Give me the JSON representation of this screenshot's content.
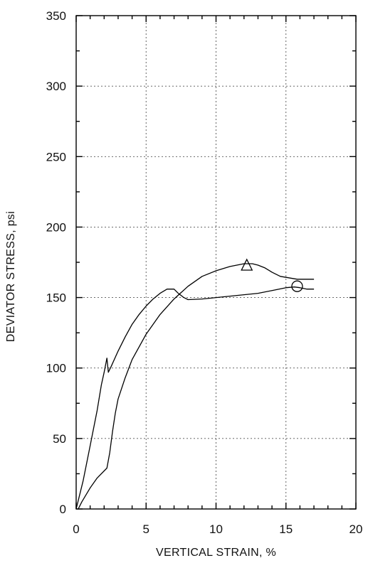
{
  "chart_data": {
    "type": "line",
    "xlabel": "VERTICAL STRAIN, %",
    "ylabel": "DEVIATOR STRESS, psi",
    "xlim": [
      0,
      20
    ],
    "ylim": [
      0,
      350
    ],
    "xticks": [
      0,
      5,
      10,
      15,
      20
    ],
    "yticks": [
      0,
      50,
      100,
      150,
      200,
      250,
      300,
      350
    ],
    "grid": true,
    "series": [
      {
        "marker": "triangle",
        "marker_point": {
          "x": 12.2,
          "y": 173
        },
        "points": [
          [
            0.15,
            0
          ],
          [
            0.4,
            5
          ],
          [
            1.0,
            15
          ],
          [
            1.5,
            22
          ],
          [
            2.2,
            29
          ],
          [
            2.4,
            40
          ],
          [
            2.6,
            55
          ],
          [
            2.8,
            68
          ],
          [
            3.0,
            78
          ],
          [
            3.5,
            93
          ],
          [
            4.0,
            106
          ],
          [
            5.0,
            124
          ],
          [
            6.0,
            138
          ],
          [
            7.0,
            149
          ],
          [
            8.0,
            158
          ],
          [
            9.0,
            165
          ],
          [
            10.0,
            169
          ],
          [
            11.0,
            172
          ],
          [
            12.0,
            174
          ],
          [
            12.6,
            174
          ],
          [
            13.0,
            173
          ],
          [
            13.5,
            171
          ],
          [
            14.0,
            168
          ],
          [
            14.6,
            165
          ],
          [
            15.2,
            164
          ],
          [
            15.8,
            163
          ],
          [
            16.3,
            163
          ],
          [
            17.0,
            163
          ]
        ]
      },
      {
        "marker": "circle",
        "marker_point": {
          "x": 15.8,
          "y": 158
        },
        "points": [
          [
            0.0,
            0
          ],
          [
            0.5,
            20
          ],
          [
            1.0,
            45
          ],
          [
            1.5,
            70
          ],
          [
            1.8,
            88
          ],
          [
            2.0,
            97
          ],
          [
            2.2,
            107
          ],
          [
            2.3,
            97
          ],
          [
            2.5,
            101
          ],
          [
            3.0,
            112
          ],
          [
            3.5,
            122
          ],
          [
            4.0,
            131
          ],
          [
            4.5,
            138
          ],
          [
            5.0,
            144
          ],
          [
            5.5,
            149
          ],
          [
            6.0,
            153
          ],
          [
            6.5,
            156
          ],
          [
            7.0,
            156
          ],
          [
            7.3,
            153
          ],
          [
            7.7,
            150
          ],
          [
            8.0,
            148.5
          ],
          [
            9.0,
            149
          ],
          [
            10.0,
            150
          ],
          [
            11.0,
            151
          ],
          [
            12.0,
            152
          ],
          [
            13.0,
            153
          ],
          [
            14.0,
            155
          ],
          [
            15.0,
            157
          ],
          [
            15.6,
            157.5
          ],
          [
            16.0,
            157
          ],
          [
            16.5,
            156
          ],
          [
            17.0,
            156
          ]
        ]
      }
    ]
  }
}
